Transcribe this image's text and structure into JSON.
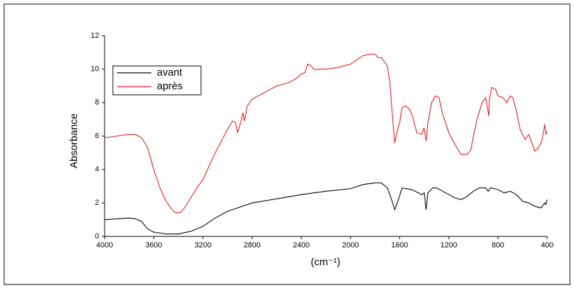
{
  "chart_data": {
    "type": "line",
    "xlabel": "(cm⁻¹)",
    "ylabel": "Absorbance",
    "xlim": [
      4000,
      400
    ],
    "ylim": [
      0,
      12
    ],
    "xticks": [
      4000,
      3600,
      3200,
      2800,
      2400,
      2000,
      1600,
      1200,
      800,
      400
    ],
    "yticks": [
      0,
      2,
      4,
      6,
      8,
      10,
      12
    ],
    "legend": "upper-left",
    "series": [
      {
        "name": "avant",
        "color": "#000000",
        "x": [
          4000,
          3800,
          3750,
          3700,
          3650,
          3600,
          3500,
          3400,
          3300,
          3200,
          3100,
          3000,
          2900,
          2800,
          2600,
          2400,
          2350,
          2300,
          2200,
          2000,
          1900,
          1800,
          1750,
          1700,
          1670,
          1640,
          1610,
          1580,
          1550,
          1500,
          1420,
          1400,
          1385,
          1370,
          1330,
          1300,
          1250,
          1150,
          1100,
          1050,
          1000,
          950,
          900,
          880,
          860,
          800,
          750,
          700,
          650,
          600,
          550,
          500,
          450,
          420,
          410,
          400
        ],
        "values": [
          1.0,
          1.1,
          1.05,
          0.9,
          0.45,
          0.25,
          0.15,
          0.15,
          0.3,
          0.6,
          1.1,
          1.5,
          1.75,
          2.0,
          2.25,
          2.5,
          2.55,
          2.6,
          2.7,
          2.85,
          3.1,
          3.2,
          3.2,
          2.9,
          2.3,
          1.6,
          2.2,
          2.9,
          2.85,
          2.8,
          2.5,
          2.6,
          1.6,
          2.6,
          2.9,
          2.9,
          2.7,
          2.3,
          2.2,
          2.4,
          2.7,
          2.9,
          2.9,
          2.7,
          2.9,
          2.8,
          2.6,
          2.7,
          2.5,
          2.1,
          2.0,
          1.8,
          1.7,
          2.0,
          1.9,
          2.2
        ]
      },
      {
        "name": "après",
        "color": "#e8191e",
        "x": [
          4000,
          3900,
          3800,
          3750,
          3700,
          3650,
          3600,
          3550,
          3500,
          3450,
          3420,
          3380,
          3350,
          3300,
          3250,
          3200,
          3150,
          3100,
          3050,
          3000,
          2960,
          2935,
          2919,
          2890,
          2875,
          2863,
          2840,
          2800,
          2700,
          2600,
          2500,
          2450,
          2400,
          2370,
          2350,
          2320,
          2300,
          2200,
          2100,
          2000,
          1900,
          1850,
          1800,
          1777,
          1750,
          1700,
          1680,
          1660,
          1640,
          1620,
          1600,
          1580,
          1550,
          1520,
          1500,
          1460,
          1420,
          1402,
          1385,
          1370,
          1340,
          1310,
          1280,
          1250,
          1200,
          1150,
          1100,
          1050,
          1020,
          1000,
          970,
          930,
          900,
          875,
          870,
          850,
          820,
          800,
          760,
          730,
          700,
          680,
          650,
          620,
          580,
          550,
          520,
          500,
          470,
          440,
          420,
          410,
          400
        ],
        "values": [
          5.9,
          6.0,
          6.1,
          6.1,
          5.9,
          5.3,
          4.0,
          2.9,
          2.1,
          1.6,
          1.4,
          1.45,
          1.7,
          2.3,
          2.9,
          3.4,
          4.2,
          5.0,
          5.7,
          6.4,
          6.9,
          6.8,
          6.2,
          6.9,
          7.4,
          6.9,
          7.8,
          8.2,
          8.6,
          9.0,
          9.2,
          9.4,
          9.7,
          9.8,
          10.3,
          10.2,
          10.0,
          10.0,
          10.1,
          10.3,
          10.8,
          10.9,
          10.9,
          10.7,
          10.7,
          10.2,
          9.2,
          7.3,
          5.6,
          6.3,
          6.8,
          7.7,
          7.8,
          7.6,
          7.3,
          6.2,
          6.1,
          6.5,
          5.7,
          6.8,
          8.0,
          8.4,
          8.3,
          7.3,
          6.2,
          5.5,
          4.9,
          4.9,
          5.2,
          6.0,
          7.0,
          8.0,
          8.3,
          7.2,
          8.2,
          8.9,
          8.8,
          8.4,
          8.3,
          8.0,
          8.4,
          8.3,
          7.5,
          6.4,
          5.8,
          6.1,
          5.5,
          5.1,
          5.3,
          5.8,
          6.7,
          6.1,
          6.3
        ]
      }
    ]
  }
}
